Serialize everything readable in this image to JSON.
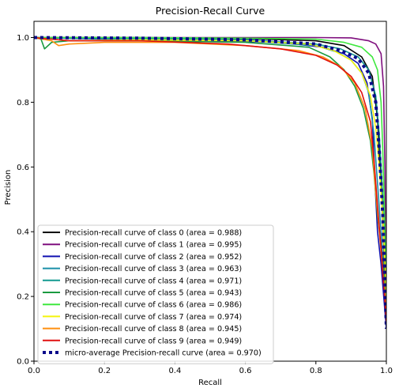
{
  "chart_data": {
    "type": "line",
    "title": "Precision-Recall Curve",
    "xlabel": "Recall",
    "ylabel": "Precision",
    "xlim": [
      0.0,
      1.0
    ],
    "ylim": [
      0.0,
      1.05
    ],
    "xticks": [
      "0.0",
      "0.2",
      "0.4",
      "0.6",
      "0.8",
      "1.0"
    ],
    "yticks": [
      "0.0",
      "0.2",
      "0.4",
      "0.6",
      "0.8",
      "1.0"
    ],
    "grid": false,
    "legend_position": "lower-left",
    "series": [
      {
        "name": "Precision-recall curve of class 0 (area = 0.988)",
        "color": "#000000",
        "style": "solid",
        "points": [
          [
            0,
            1.0
          ],
          [
            0.3,
            1.0
          ],
          [
            0.6,
            0.997
          ],
          [
            0.8,
            0.99
          ],
          [
            0.88,
            0.975
          ],
          [
            0.93,
            0.94
          ],
          [
            0.96,
            0.88
          ],
          [
            0.975,
            0.75
          ],
          [
            0.985,
            0.55
          ],
          [
            0.993,
            0.35
          ],
          [
            1.0,
            0.1
          ]
        ]
      },
      {
        "name": "Precision-recall curve of class 1 (area = 0.995)",
        "color": "#7f0f7e",
        "style": "solid",
        "points": [
          [
            0,
            1.0
          ],
          [
            0.5,
            1.0
          ],
          [
            0.8,
            1.0
          ],
          [
            0.9,
            0.999
          ],
          [
            0.95,
            0.99
          ],
          [
            0.97,
            0.98
          ],
          [
            0.985,
            0.95
          ],
          [
            0.992,
            0.85
          ],
          [
            0.996,
            0.6
          ],
          [
            1.0,
            0.12
          ]
        ]
      },
      {
        "name": "Precision-recall curve of class 2 (area = 0.952)",
        "color": "#1010b0",
        "style": "solid",
        "points": [
          [
            0,
            1.0
          ],
          [
            0.2,
            0.995
          ],
          [
            0.5,
            0.99
          ],
          [
            0.7,
            0.985
          ],
          [
            0.82,
            0.97
          ],
          [
            0.88,
            0.95
          ],
          [
            0.92,
            0.92
          ],
          [
            0.945,
            0.86
          ],
          [
            0.96,
            0.75
          ],
          [
            0.968,
            0.55
          ],
          [
            0.975,
            0.4
          ],
          [
            0.985,
            0.3
          ],
          [
            1.0,
            0.1
          ]
        ]
      },
      {
        "name": "Precision-recall curve of class 3 (area = 0.963)",
        "color": "#1a8fa8",
        "style": "solid",
        "points": [
          [
            0,
            1.0
          ],
          [
            0.3,
            0.995
          ],
          [
            0.6,
            0.99
          ],
          [
            0.8,
            0.975
          ],
          [
            0.86,
            0.955
          ],
          [
            0.9,
            0.93
          ],
          [
            0.93,
            0.89
          ],
          [
            0.95,
            0.83
          ],
          [
            0.965,
            0.7
          ],
          [
            0.975,
            0.55
          ],
          [
            0.985,
            0.4
          ],
          [
            1.0,
            0.15
          ]
        ]
      },
      {
        "name": "Precision-recall curve of class 4 (area = 0.971)",
        "color": "#129a90",
        "style": "solid",
        "points": [
          [
            0,
            1.0
          ],
          [
            0.3,
            0.998
          ],
          [
            0.6,
            0.993
          ],
          [
            0.8,
            0.98
          ],
          [
            0.87,
            0.965
          ],
          [
            0.92,
            0.94
          ],
          [
            0.95,
            0.9
          ],
          [
            0.97,
            0.82
          ],
          [
            0.98,
            0.7
          ],
          [
            0.99,
            0.5
          ],
          [
            1.0,
            0.2
          ]
        ]
      },
      {
        "name": "Precision-recall curve of class 5 (area = 0.943)",
        "color": "#1a9a40",
        "style": "solid",
        "points": [
          [
            0,
            1.0
          ],
          [
            0.02,
            0.995
          ],
          [
            0.03,
            0.965
          ],
          [
            0.05,
            0.985
          ],
          [
            0.1,
            0.99
          ],
          [
            0.3,
            0.99
          ],
          [
            0.6,
            0.985
          ],
          [
            0.78,
            0.97
          ],
          [
            0.84,
            0.94
          ],
          [
            0.88,
            0.9
          ],
          [
            0.91,
            0.85
          ],
          [
            0.935,
            0.78
          ],
          [
            0.955,
            0.68
          ],
          [
            0.965,
            0.58
          ],
          [
            0.975,
            0.45
          ],
          [
            0.985,
            0.35
          ],
          [
            1.0,
            0.2
          ]
        ]
      },
      {
        "name": "Precision-recall curve of class 6 (area = 0.986)",
        "color": "#3ee83e",
        "style": "solid",
        "points": [
          [
            0,
            1.0
          ],
          [
            0.3,
            1.0
          ],
          [
            0.6,
            0.998
          ],
          [
            0.8,
            0.995
          ],
          [
            0.88,
            0.985
          ],
          [
            0.93,
            0.97
          ],
          [
            0.96,
            0.94
          ],
          [
            0.975,
            0.9
          ],
          [
            0.985,
            0.8
          ],
          [
            0.99,
            0.65
          ],
          [
            0.995,
            0.45
          ],
          [
            1.0,
            0.2
          ]
        ]
      },
      {
        "name": "Precision-recall curve of class 7 (area = 0.974)",
        "color": "#f4f40a",
        "style": "solid",
        "points": [
          [
            0,
            1.0
          ],
          [
            0.1,
            0.99
          ],
          [
            0.3,
            0.993
          ],
          [
            0.6,
            0.99
          ],
          [
            0.78,
            0.98
          ],
          [
            0.85,
            0.96
          ],
          [
            0.9,
            0.93
          ],
          [
            0.93,
            0.89
          ],
          [
            0.955,
            0.82
          ],
          [
            0.97,
            0.72
          ],
          [
            0.98,
            0.6
          ],
          [
            0.99,
            0.45
          ],
          [
            1.0,
            0.2
          ]
        ]
      },
      {
        "name": "Precision-recall curve of class 8 (area = 0.945)",
        "color": "#ff8f0f",
        "style": "solid",
        "points": [
          [
            0,
            1.0
          ],
          [
            0.05,
            0.99
          ],
          [
            0.07,
            0.975
          ],
          [
            0.1,
            0.98
          ],
          [
            0.2,
            0.985
          ],
          [
            0.4,
            0.985
          ],
          [
            0.6,
            0.975
          ],
          [
            0.75,
            0.96
          ],
          [
            0.82,
            0.94
          ],
          [
            0.87,
            0.91
          ],
          [
            0.91,
            0.86
          ],
          [
            0.94,
            0.78
          ],
          [
            0.96,
            0.66
          ],
          [
            0.97,
            0.52
          ],
          [
            0.98,
            0.4
          ],
          [
            1.0,
            0.15
          ]
        ]
      },
      {
        "name": "Precision-recall curve of class 9 (area = 0.949)",
        "color": "#e01010",
        "style": "solid",
        "points": [
          [
            0,
            1.0
          ],
          [
            0.1,
            0.99
          ],
          [
            0.3,
            0.99
          ],
          [
            0.55,
            0.98
          ],
          [
            0.7,
            0.965
          ],
          [
            0.8,
            0.945
          ],
          [
            0.86,
            0.915
          ],
          [
            0.9,
            0.88
          ],
          [
            0.93,
            0.83
          ],
          [
            0.955,
            0.74
          ],
          [
            0.965,
            0.62
          ],
          [
            0.975,
            0.48
          ],
          [
            0.985,
            0.35
          ],
          [
            1.0,
            0.12
          ]
        ]
      },
      {
        "name": "micro-average Precision-recall curve (area = 0.970)",
        "color": "#0a0a8a",
        "style": "dotted",
        "points": [
          [
            0,
            1.0
          ],
          [
            0.3,
            0.998
          ],
          [
            0.6,
            0.993
          ],
          [
            0.8,
            0.98
          ],
          [
            0.87,
            0.96
          ],
          [
            0.92,
            0.935
          ],
          [
            0.95,
            0.89
          ],
          [
            0.97,
            0.8
          ],
          [
            0.98,
            0.65
          ],
          [
            0.99,
            0.45
          ],
          [
            1.0,
            0.1
          ]
        ]
      }
    ]
  }
}
